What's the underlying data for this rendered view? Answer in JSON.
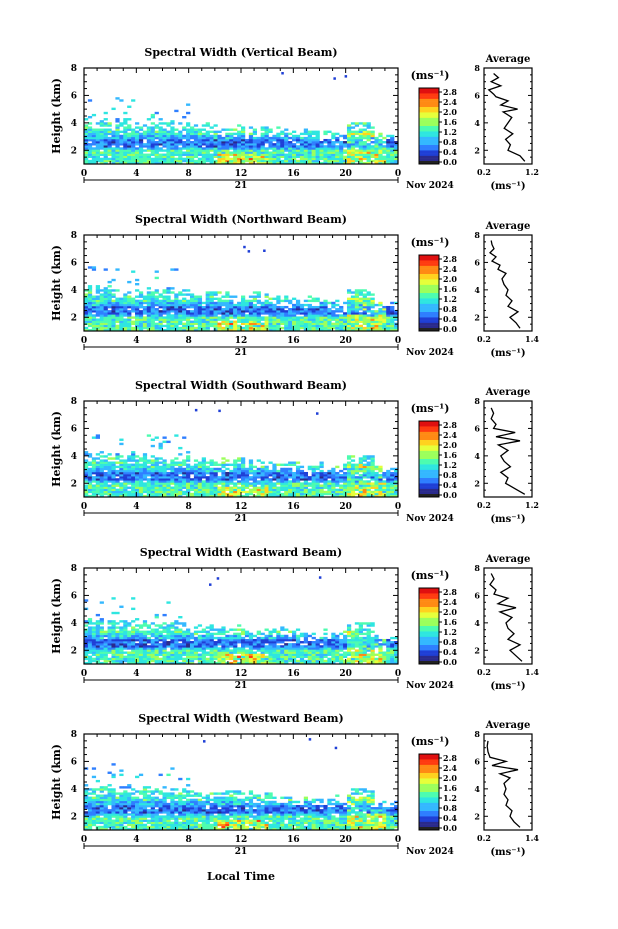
{
  "figure": {
    "xlabel": "Local Time",
    "date_label": "Nov 2024",
    "day_label": "21",
    "units_label": "(ms⁻¹)",
    "average_title": "Average",
    "height_label": "Height (km)"
  },
  "colors": {
    "colormap": [
      "#2a2a8c",
      "#1f3fd6",
      "#2f7fff",
      "#34b8ff",
      "#2ee6e0",
      "#4dfcb0",
      "#9cff5c",
      "#e6ff3a",
      "#ffd21f",
      "#ff8a14",
      "#ff3b10",
      "#e01010"
    ]
  },
  "chart_data": [
    {
      "type": "heatmap",
      "title": "Spectral Width (Vertical Beam)",
      "ylabel": "Height (km)",
      "xlim": [
        0,
        24
      ],
      "ylim": [
        1,
        8
      ],
      "xticks": [
        "0",
        "4",
        "8",
        "12",
        "16",
        "20",
        "0"
      ],
      "yticks": [
        "2",
        "4",
        "6",
        "8"
      ],
      "colorbar": {
        "ticks": [
          "2.8",
          "2.4",
          "2.0",
          "1.6",
          "1.2",
          "0.8",
          "0.4",
          "0.0"
        ],
        "range": [
          0.0,
          2.8
        ]
      },
      "profile": {
        "xlim": [
          0.2,
          1.2
        ],
        "xticks": [
          "0.2",
          "1.2"
        ],
        "ylim": [
          1,
          8
        ],
        "yticks": [
          "2",
          "4",
          "6",
          "8"
        ],
        "xlabel": "(ms⁻¹)",
        "x": [
          1.05,
          0.95,
          0.7,
          0.75,
          0.65,
          0.8,
          0.62,
          0.7,
          0.78,
          0.6,
          0.9,
          0.55,
          0.7,
          0.45,
          0.4,
          0.3,
          0.55,
          0.35,
          0.5,
          0.4
        ],
        "y": [
          1.2,
          1.6,
          2.0,
          2.4,
          2.8,
          3.2,
          3.6,
          4.0,
          4.4,
          4.8,
          5.0,
          5.3,
          5.6,
          5.9,
          6.1,
          6.4,
          6.7,
          7.0,
          7.3,
          7.6
        ]
      }
    },
    {
      "type": "heatmap",
      "title": "Spectral Width (Northward Beam)",
      "ylabel": "Height (km)",
      "xlim": [
        0,
        24
      ],
      "ylim": [
        1,
        8
      ],
      "xticks": [
        "0",
        "4",
        "8",
        "12",
        "16",
        "20",
        "0"
      ],
      "yticks": [
        "2",
        "4",
        "6",
        "8"
      ],
      "colorbar": {
        "ticks": [
          "2.8",
          "2.4",
          "2.0",
          "1.6",
          "1.2",
          "0.8",
          "0.4",
          "0.0"
        ],
        "range": [
          0.0,
          2.8
        ]
      },
      "profile": {
        "xlim": [
          0.2,
          1.4
        ],
        "xticks": [
          "0.2",
          "1.4"
        ],
        "ylim": [
          1,
          8
        ],
        "yticks": [
          "2",
          "4",
          "6",
          "8"
        ],
        "xlabel": "(ms⁻¹)",
        "x": [
          1.1,
          1.0,
          0.85,
          1.05,
          0.8,
          0.9,
          0.75,
          0.8,
          0.7,
          0.65,
          0.75,
          0.55,
          0.6,
          0.4,
          0.5,
          0.35,
          0.45,
          0.4,
          0.38
        ],
        "y": [
          1.2,
          1.6,
          2.0,
          2.4,
          2.8,
          3.2,
          3.6,
          4.0,
          4.4,
          4.8,
          5.2,
          5.5,
          5.8,
          6.1,
          6.4,
          6.7,
          7.0,
          7.3,
          7.6
        ]
      }
    },
    {
      "type": "heatmap",
      "title": "Spectral Width (Southward Beam)",
      "ylabel": "Height (km)",
      "xlim": [
        0,
        24
      ],
      "ylim": [
        1,
        8
      ],
      "xticks": [
        "0",
        "4",
        "8",
        "12",
        "16",
        "20",
        "0"
      ],
      "yticks": [
        "2",
        "4",
        "6",
        "8"
      ],
      "colorbar": {
        "ticks": [
          "2.8",
          "2.4",
          "2.0",
          "1.6",
          "1.2",
          "0.8",
          "0.4",
          "0.0"
        ],
        "range": [
          0.0,
          2.8
        ]
      },
      "profile": {
        "xlim": [
          0.2,
          1.2
        ],
        "xticks": [
          "0.2",
          "1.2"
        ],
        "ylim": [
          1,
          8
        ],
        "yticks": [
          "2",
          "4",
          "6",
          "8"
        ],
        "xlabel": "(ms⁻¹)",
        "x": [
          1.05,
          0.85,
          0.65,
          0.7,
          0.55,
          0.75,
          0.62,
          0.55,
          0.7,
          0.5,
          0.95,
          0.45,
          0.85,
          0.4,
          0.45,
          0.35,
          0.4,
          0.35
        ],
        "y": [
          1.2,
          1.6,
          2.0,
          2.4,
          2.8,
          3.2,
          3.6,
          4.0,
          4.4,
          4.8,
          5.1,
          5.4,
          5.7,
          6.0,
          6.3,
          6.7,
          7.1,
          7.5
        ]
      }
    },
    {
      "type": "heatmap",
      "title": "Spectral Width (Eastward Beam)",
      "ylabel": "Height (km)",
      "xlim": [
        0,
        24
      ],
      "ylim": [
        1,
        8
      ],
      "xticks": [
        "0",
        "4",
        "8",
        "12",
        "16",
        "20",
        "0"
      ],
      "yticks": [
        "2",
        "4",
        "6",
        "8"
      ],
      "colorbar": {
        "ticks": [
          "2.8",
          "2.4",
          "2.0",
          "1.6",
          "1.2",
          "0.8",
          "0.4",
          "0.0"
        ],
        "range": [
          0.0,
          2.8
        ]
      },
      "profile": {
        "xlim": [
          0.2,
          1.4
        ],
        "xticks": [
          "0.2",
          "1.4"
        ],
        "ylim": [
          1,
          8
        ],
        "yticks": [
          "2",
          "4",
          "6",
          "8"
        ],
        "xlabel": "(ms⁻¹)",
        "x": [
          1.15,
          1.0,
          0.85,
          1.1,
          0.8,
          0.95,
          0.8,
          0.75,
          0.9,
          0.6,
          1.0,
          0.55,
          0.8,
          0.45,
          0.5,
          0.35,
          0.45,
          0.38
        ],
        "y": [
          1.2,
          1.6,
          2.0,
          2.4,
          2.8,
          3.2,
          3.6,
          4.0,
          4.4,
          4.8,
          5.1,
          5.4,
          5.8,
          6.1,
          6.4,
          6.8,
          7.2,
          7.6
        ]
      }
    },
    {
      "type": "heatmap",
      "title": "Spectral Width (Westward Beam)",
      "ylabel": "Height (km)",
      "xlim": [
        0,
        24
      ],
      "ylim": [
        1,
        8
      ],
      "xticks": [
        "0",
        "4",
        "8",
        "12",
        "16",
        "20",
        "0"
      ],
      "yticks": [
        "2",
        "4",
        "6",
        "8"
      ],
      "colorbar": {
        "ticks": [
          "2.8",
          "2.4",
          "2.0",
          "1.6",
          "1.2",
          "0.8",
          "0.4",
          "0.0"
        ],
        "range": [
          0.0,
          2.8
        ]
      },
      "profile": {
        "xlim": [
          0.2,
          1.4
        ],
        "xticks": [
          "0.2",
          "1.4"
        ],
        "ylim": [
          1,
          8
        ],
        "yticks": [
          "2",
          "4",
          "6",
          "8"
        ],
        "xlabel": "(ms⁻¹)",
        "x": [
          1.1,
          0.95,
          0.85,
          0.9,
          0.75,
          0.8,
          0.7,
          0.75,
          0.7,
          0.85,
          0.6,
          1.05,
          0.4,
          0.75,
          0.35,
          0.3,
          0.28,
          0.3
        ],
        "y": [
          1.2,
          1.6,
          2.0,
          2.4,
          2.8,
          3.2,
          3.6,
          4.0,
          4.4,
          4.8,
          5.1,
          5.4,
          5.7,
          6.0,
          6.3,
          6.7,
          7.1,
          7.5
        ]
      }
    }
  ]
}
